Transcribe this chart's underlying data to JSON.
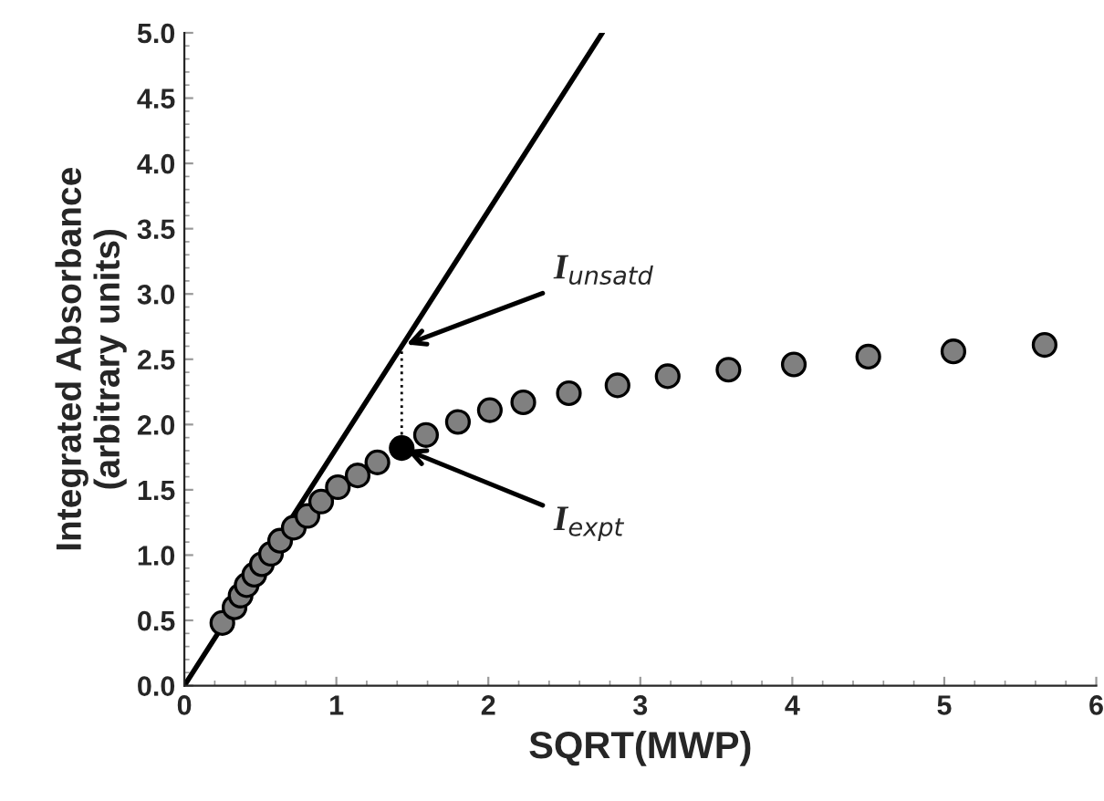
{
  "chart_data": {
    "type": "scatter",
    "xlabel": "SQRT(MWP)",
    "ylabel": "Integrated Absorbance\n(arbitrary units)",
    "xlim": [
      0,
      6
    ],
    "xticks": [
      0,
      1,
      2,
      3,
      4,
      5,
      6
    ],
    "ylim": [
      0,
      5
    ],
    "yticks": [
      {
        "value": 0,
        "label": "0.0"
      },
      {
        "value": 0.5,
        "label": "0.5"
      },
      {
        "value": 1,
        "label": "1.0"
      },
      {
        "value": 1.5,
        "label": "1.5"
      },
      {
        "value": 2,
        "label": "2.0"
      },
      {
        "value": 2.5,
        "label": "2.5"
      },
      {
        "value": 3,
        "label": "3.0"
      },
      {
        "value": 3.5,
        "label": "3.5"
      },
      {
        "value": 4,
        "label": "4.0"
      },
      {
        "value": 4.5,
        "label": "4.5"
      },
      {
        "value": 5,
        "label": "5.0"
      }
    ],
    "grid": false,
    "legend": false,
    "marker": "circle",
    "series": [
      {
        "type": "line",
        "color": "#000000",
        "line_style": "solid",
        "marker": "none",
        "x": [
          0,
          2.75
        ],
        "values": [
          0,
          5
        ]
      },
      {
        "type": "line",
        "color": "#000000",
        "line_style": "dotted",
        "marker": "none",
        "x": [
          1.43,
          1.43
        ],
        "values": [
          1.82,
          2.6
        ]
      },
      {
        "color": "#808080",
        "x": [
          0.25,
          0.33,
          0.37,
          0.41,
          0.46,
          0.51,
          0.57,
          0.63,
          0.72,
          0.81,
          0.9,
          1.01,
          1.14,
          1.27,
          1.59,
          1.8,
          2.01,
          2.23,
          2.53,
          2.85,
          3.18,
          3.58,
          4.01,
          4.5,
          5.06,
          5.66
        ],
        "values": [
          0.48,
          0.6,
          0.69,
          0.77,
          0.85,
          0.93,
          1.01,
          1.11,
          1.21,
          1.3,
          1.41,
          1.52,
          1.61,
          1.71,
          1.92,
          2.02,
          2.11,
          2.17,
          2.24,
          2.3,
          2.37,
          2.42,
          2.46,
          2.52,
          2.56,
          2.61
        ]
      },
      {
        "color": "#000000",
        "x": [
          1.43
        ],
        "values": [
          1.82
        ]
      }
    ],
    "annotations": [
      {
        "text": "I$_{unsatd}$",
        "x": 1.43,
        "y": 2.6
      },
      {
        "text": "I$_{expt}$",
        "x": 1.43,
        "y": 1.82
      }
    ]
  }
}
